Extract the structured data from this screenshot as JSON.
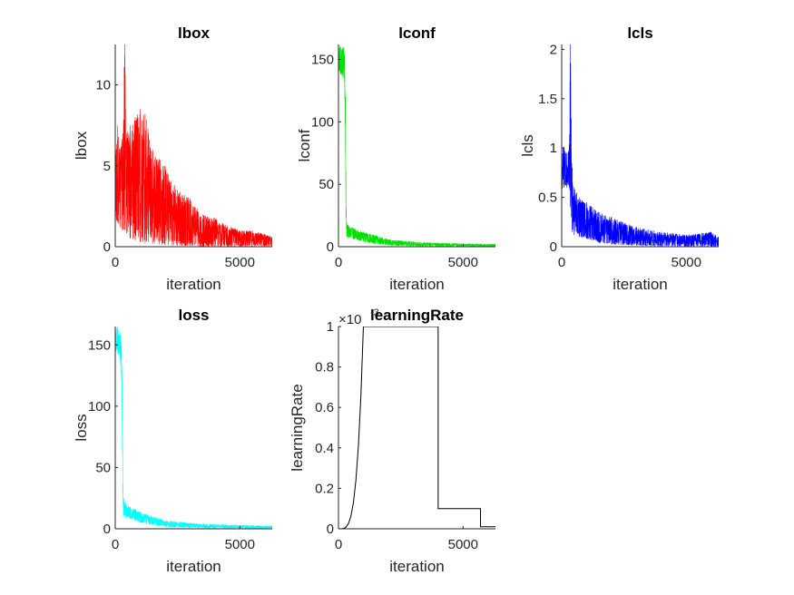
{
  "chart_data": [
    {
      "type": "line",
      "title": "lbox",
      "xlabel": "iteration",
      "ylabel": "lbox",
      "xlim": [
        0,
        6300
      ],
      "ylim": [
        0,
        12.5
      ],
      "xticks": [
        0,
        5000
      ],
      "yticks": [
        0,
        5,
        10
      ],
      "xtick_labels": [
        "0",
        "5000"
      ],
      "ytick_labels": [
        "0",
        "5",
        "10"
      ],
      "color": "#ff0000",
      "grid": false,
      "legend": "none",
      "series": [
        {
          "x": [
            0,
            100,
            200,
            300,
            380,
            450,
            600,
            800,
            1000,
            1200,
            1500,
            2000,
            2500,
            3000,
            3500,
            4000,
            4500,
            5000,
            5500,
            6000,
            6300
          ],
          "y": [
            4.0,
            4.2,
            3.9,
            4.5,
            12.5,
            4.0,
            3.8,
            3.6,
            3.4,
            3.2,
            2.8,
            2.0,
            1.4,
            1.0,
            0.8,
            0.6,
            0.5,
            0.4,
            0.35,
            0.3,
            0.3
          ],
          "y_min": [
            1.0,
            1.5,
            1.2,
            1.0,
            1.0,
            0.8,
            0.5,
            0.4,
            0.3,
            0.2,
            0.2,
            0.1,
            0.05,
            0.05,
            0.0,
            0.0,
            0.0,
            0.0,
            0.0,
            0.0,
            0.0
          ],
          "y_max": [
            6.5,
            7.5,
            6.0,
            7.0,
            12.5,
            7.0,
            7.5,
            8.0,
            8.5,
            8.2,
            6.0,
            5.0,
            3.5,
            3.0,
            2.0,
            1.8,
            1.3,
            1.0,
            1.0,
            0.8,
            0.6
          ]
        }
      ]
    },
    {
      "type": "line",
      "title": "lconf",
      "xlabel": "iteration",
      "ylabel": "lconf",
      "xlim": [
        0,
        6300
      ],
      "ylim": [
        0,
        162
      ],
      "xticks": [
        0,
        5000
      ],
      "yticks": [
        0,
        50,
        100,
        150
      ],
      "xtick_labels": [
        "0",
        "5000"
      ],
      "ytick_labels": [
        "0",
        "50",
        "100",
        "150"
      ],
      "color": "#00e000",
      "grid": false,
      "legend": "none",
      "series": [
        {
          "x": [
            0,
            100,
            200,
            250,
            280,
            300,
            330,
            400,
            600,
            1000,
            1500,
            2000,
            3000,
            4000,
            5000,
            6300
          ],
          "y": [
            152,
            150,
            148,
            140,
            100,
            40,
            14,
            12,
            10,
            7,
            5,
            3,
            2,
            1.5,
            1.2,
            1
          ],
          "y_min": [
            140,
            138,
            135,
            125,
            80,
            25,
            8,
            7,
            6,
            4,
            2,
            1,
            0.5,
            0.3,
            0.2,
            0.2
          ],
          "y_max": [
            162,
            160,
            160,
            155,
            120,
            60,
            20,
            17,
            15,
            12,
            9,
            6,
            4,
            3,
            2.5,
            2
          ]
        }
      ]
    },
    {
      "type": "line",
      "title": "lcls",
      "xlabel": "iteration",
      "ylabel": "lcls",
      "xlim": [
        0,
        6300
      ],
      "ylim": [
        0,
        2.05
      ],
      "xticks": [
        0,
        5000
      ],
      "yticks": [
        0,
        0.5,
        1,
        1.5,
        2
      ],
      "xtick_labels": [
        "0",
        "5000"
      ],
      "ytick_labels": [
        "0",
        "0.5",
        "1",
        "1.5",
        "2"
      ],
      "color": "#0000ff",
      "grid": false,
      "legend": "none",
      "series": [
        {
          "x": [
            0,
            100,
            200,
            300,
            350,
            380,
            420,
            500,
            700,
            1000,
            1500,
            2000,
            3000,
            4000,
            5000,
            6000,
            6300
          ],
          "y": [
            0.8,
            0.82,
            0.78,
            0.8,
            1.2,
            0.6,
            0.35,
            0.3,
            0.25,
            0.2,
            0.12,
            0.1,
            0.07,
            0.06,
            0.05,
            0.05,
            0.04
          ],
          "y_min": [
            0.55,
            0.6,
            0.6,
            0.6,
            0.4,
            0.3,
            0.15,
            0.12,
            0.1,
            0.08,
            0.04,
            0.02,
            0.01,
            0.0,
            0.0,
            0.0,
            0.0
          ],
          "y_max": [
            1.1,
            1.0,
            0.95,
            1.0,
            2.05,
            1.3,
            0.8,
            0.6,
            0.5,
            0.45,
            0.35,
            0.3,
            0.2,
            0.15,
            0.12,
            0.15,
            0.1
          ]
        }
      ]
    },
    {
      "type": "line",
      "title": "loss",
      "xlabel": "iteration",
      "ylabel": "loss",
      "xlim": [
        0,
        6300
      ],
      "ylim": [
        0,
        165
      ],
      "xticks": [
        0,
        5000
      ],
      "yticks": [
        0,
        50,
        100,
        150
      ],
      "xtick_labels": [
        "0",
        "5000"
      ],
      "ytick_labels": [
        "0",
        "50",
        "100",
        "150"
      ],
      "color": "#00ffff",
      "grid": false,
      "legend": "none",
      "series": [
        {
          "x": [
            0,
            100,
            200,
            250,
            280,
            300,
            330,
            400,
            600,
            1000,
            1500,
            2000,
            3000,
            4000,
            5000,
            6300
          ],
          "y": [
            155,
            157,
            150,
            135,
            100,
            45,
            18,
            15,
            13,
            9,
            6,
            4,
            2.5,
            1.8,
            1.5,
            1.2
          ],
          "y_min": [
            145,
            143,
            138,
            120,
            80,
            30,
            10,
            9,
            8,
            5,
            3,
            1.5,
            0.8,
            0.5,
            0.3,
            0.3
          ],
          "y_max": [
            165,
            165,
            160,
            150,
            120,
            65,
            25,
            21,
            18,
            14,
            10,
            7,
            5,
            3.5,
            3,
            2.5
          ]
        }
      ]
    },
    {
      "type": "line",
      "title": "learningRate",
      "xlabel": "iteration",
      "ylabel": "learningRate",
      "xlim": [
        0,
        6300
      ],
      "ylim": [
        0,
        1.0
      ],
      "xticks": [
        0,
        5000
      ],
      "yticks": [
        0,
        0.2,
        0.4,
        0.6,
        0.8,
        1
      ],
      "xtick_labels": [
        "0",
        "5000"
      ],
      "ytick_labels": [
        "0",
        "0.2",
        "0.4",
        "0.6",
        "0.8",
        "1"
      ],
      "y_multiplier": "×10",
      "y_multiplier_exponent": "-3",
      "color": "#000000",
      "grid": false,
      "legend": "none",
      "series": [
        {
          "x": [
            0,
            100,
            200,
            300,
            400,
            500,
            600,
            700,
            800,
            900,
            1000,
            4000,
            4000,
            5700,
            5700,
            6300
          ],
          "y": [
            0.0,
            0.0001,
            0.0016,
            0.0081,
            0.0256,
            0.0625,
            0.1296,
            0.2401,
            0.4096,
            0.6561,
            1.0,
            1.0,
            0.1,
            0.1,
            0.01,
            0.01
          ]
        }
      ]
    }
  ]
}
